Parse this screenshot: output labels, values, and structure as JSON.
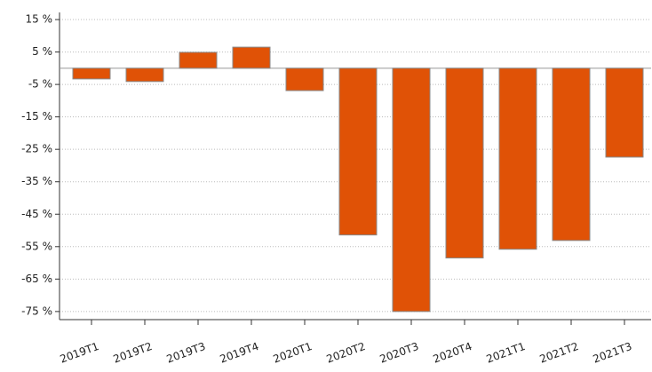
{
  "chart_data": {
    "type": "bar",
    "categories": [
      "2019T1",
      "2019T2",
      "2019T3",
      "2019T4",
      "2020T1",
      "2020T2",
      "2020T3",
      "2020T4",
      "2021T1",
      "2021T2",
      "2021T3"
    ],
    "values": [
      -3.3,
      -4.1,
      4.9,
      6.5,
      -6.9,
      -51.4,
      -75,
      -58.5,
      -55.8,
      -53.1,
      -27.4
    ],
    "color": "#e05206",
    "ylim": [
      -77.5,
      17.2
    ],
    "yticks": [
      {
        "value": 15,
        "label": "15 %"
      },
      {
        "value": 5,
        "label": "5 %"
      },
      {
        "value": -5,
        "label": "-5 %"
      },
      {
        "value": -15,
        "label": "-15 %"
      },
      {
        "value": -25,
        "label": "-25 %"
      },
      {
        "value": -35,
        "label": "-35 %"
      },
      {
        "value": -45,
        "label": "-45 %"
      },
      {
        "value": -55,
        "label": "-55 %"
      },
      {
        "value": -65,
        "label": "-65 %"
      },
      {
        "value": -75,
        "label": "-75 %"
      }
    ],
    "grid": true
  }
}
